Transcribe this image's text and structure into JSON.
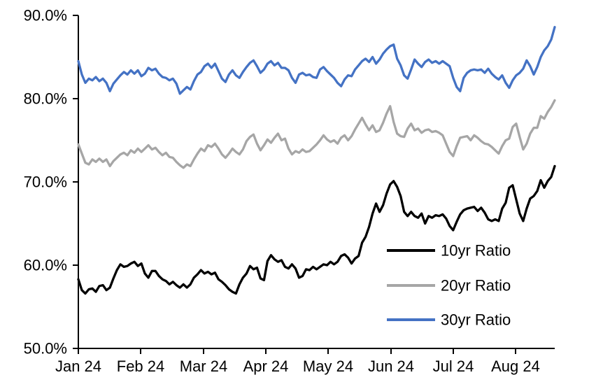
{
  "page": {
    "background": "#FFFFFF"
  },
  "chart_data": {
    "type": "line",
    "title": "",
    "xlabel": "",
    "ylabel": "",
    "grid": false,
    "legend_position": "inside-lower-right",
    "x_tick_labels": [
      "Jan 24",
      "Feb 24",
      "Mar 24",
      "Apr 24",
      "May 24",
      "Jun 24",
      "Jul 24",
      "Aug 24"
    ],
    "y_tick_labels": [
      "90.0%",
      "80.0%",
      "70.0%",
      "60.0%",
      "50.0%"
    ],
    "y_tick_values": [
      90,
      80,
      70,
      60,
      50
    ],
    "ylim": [
      50,
      90
    ],
    "series": [
      {
        "name": "10yr Ratio",
        "color": "#000000",
        "values": [
          58.3,
          57.0,
          56.6,
          57.1,
          57.2,
          56.8,
          57.5,
          57.6,
          57.0,
          57.3,
          58.4,
          59.4,
          60.1,
          59.8,
          59.9,
          60.2,
          60.4,
          59.9,
          60.2,
          59.0,
          58.5,
          59.3,
          59.3,
          58.7,
          58.3,
          58.1,
          57.7,
          58.0,
          57.6,
          57.3,
          57.7,
          57.3,
          57.7,
          58.5,
          58.9,
          59.4,
          59.0,
          59.2,
          58.9,
          59.1,
          58.3,
          58.0,
          57.6,
          57.1,
          56.8,
          56.6,
          57.7,
          58.5,
          59.0,
          59.9,
          59.5,
          59.7,
          58.4,
          58.2,
          60.5,
          61.2,
          60.7,
          60.4,
          60.6,
          59.8,
          59.6,
          60.1,
          59.6,
          58.5,
          58.7,
          59.5,
          59.4,
          59.8,
          59.5,
          59.8,
          60.1,
          60.0,
          60.4,
          60.1,
          60.4,
          61.1,
          61.3,
          60.9,
          60.2,
          60.8,
          61.1,
          62.7,
          63.4,
          64.6,
          66.2,
          67.4,
          66.4,
          67.2,
          68.6,
          69.7,
          70.1,
          69.4,
          68.3,
          66.4,
          65.9,
          66.4,
          65.9,
          65.7,
          66.2,
          65.0,
          65.9,
          65.7,
          66.0,
          65.9,
          66.1,
          65.6,
          64.7,
          64.2,
          65.2,
          66.1,
          66.6,
          66.8,
          66.9,
          67.0,
          66.5,
          66.9,
          66.3,
          65.5,
          65.3,
          65.5,
          65.3,
          66.8,
          67.5,
          69.3,
          69.6,
          67.9,
          66.2,
          65.3,
          66.8,
          68.0,
          68.3,
          68.9,
          70.2,
          69.3,
          70.1,
          70.6,
          71.9
        ]
      },
      {
        "name": "20yr Ratio",
        "color": "#A6A6A6",
        "values": [
          74.5,
          73.4,
          72.3,
          72.1,
          72.7,
          72.4,
          72.8,
          72.4,
          72.7,
          71.9,
          72.5,
          72.9,
          73.3,
          73.5,
          73.2,
          73.8,
          73.5,
          74.0,
          73.6,
          74.0,
          74.4,
          73.9,
          74.1,
          73.6,
          73.2,
          73.5,
          73.0,
          72.9,
          72.4,
          72.0,
          71.7,
          72.1,
          71.9,
          72.7,
          73.4,
          74.0,
          73.7,
          74.4,
          74.2,
          74.6,
          74.0,
          73.3,
          72.9,
          73.4,
          74.0,
          73.6,
          73.3,
          73.9,
          74.9,
          75.4,
          75.7,
          74.6,
          73.8,
          74.4,
          75.1,
          74.7,
          75.3,
          75.8,
          75.0,
          75.2,
          74.0,
          73.3,
          73.7,
          73.5,
          73.9,
          73.6,
          73.7,
          74.1,
          74.5,
          75.0,
          75.6,
          75.1,
          74.8,
          75.0,
          74.6,
          75.3,
          75.6,
          75.0,
          75.5,
          76.3,
          77.0,
          77.7,
          76.9,
          76.2,
          76.8,
          76.0,
          76.2,
          77.1,
          78.2,
          79.1,
          77.2,
          75.8,
          75.5,
          75.4,
          76.4,
          77.0,
          76.2,
          76.4,
          75.9,
          76.2,
          76.3,
          76.0,
          76.1,
          75.9,
          75.6,
          74.6,
          73.6,
          73.1,
          74.3,
          75.3,
          75.4,
          75.5,
          75.0,
          75.6,
          75.3,
          74.9,
          74.6,
          74.5,
          74.2,
          73.8,
          73.4,
          74.3,
          75.0,
          75.2,
          76.6,
          77.0,
          75.4,
          73.9,
          74.6,
          75.8,
          76.5,
          76.5,
          77.9,
          77.6,
          78.4,
          79.0,
          79.8
        ]
      },
      {
        "name": "30yr Ratio",
        "color": "#4472C4",
        "values": [
          84.5,
          82.9,
          81.9,
          82.4,
          82.2,
          82.6,
          82.1,
          82.4,
          81.9,
          80.9,
          81.8,
          82.3,
          82.8,
          83.2,
          82.9,
          83.4,
          83.0,
          83.4,
          82.7,
          83.0,
          83.7,
          83.4,
          83.6,
          83.0,
          82.6,
          82.5,
          82.2,
          82.4,
          81.8,
          80.6,
          81.0,
          81.4,
          81.1,
          82.1,
          82.9,
          83.2,
          83.9,
          84.2,
          83.7,
          84.2,
          83.3,
          82.4,
          82.0,
          82.9,
          83.4,
          82.8,
          82.5,
          83.2,
          83.8,
          84.3,
          84.6,
          83.9,
          83.1,
          83.5,
          84.2,
          84.5,
          84.0,
          84.3,
          83.7,
          83.7,
          83.4,
          82.5,
          81.9,
          82.9,
          83.1,
          82.8,
          82.9,
          82.6,
          82.5,
          83.5,
          83.8,
          83.3,
          82.9,
          82.5,
          81.9,
          81.5,
          82.3,
          82.8,
          82.7,
          83.5,
          84.0,
          84.5,
          84.8,
          84.4,
          85.0,
          84.2,
          84.7,
          85.4,
          85.9,
          86.3,
          86.5,
          84.8,
          84.0,
          82.8,
          82.4,
          83.5,
          84.7,
          84.2,
          83.8,
          84.4,
          84.7,
          84.3,
          84.5,
          84.2,
          84.5,
          84.2,
          83.9,
          82.5,
          81.4,
          80.9,
          82.5,
          83.1,
          83.4,
          83.5,
          83.4,
          83.5,
          83.1,
          83.6,
          83.0,
          82.6,
          82.3,
          82.8,
          81.9,
          81.3,
          82.2,
          82.8,
          83.1,
          83.6,
          84.6,
          83.9,
          82.9,
          83.8,
          85.0,
          85.8,
          86.3,
          87.1,
          88.6
        ]
      }
    ]
  }
}
